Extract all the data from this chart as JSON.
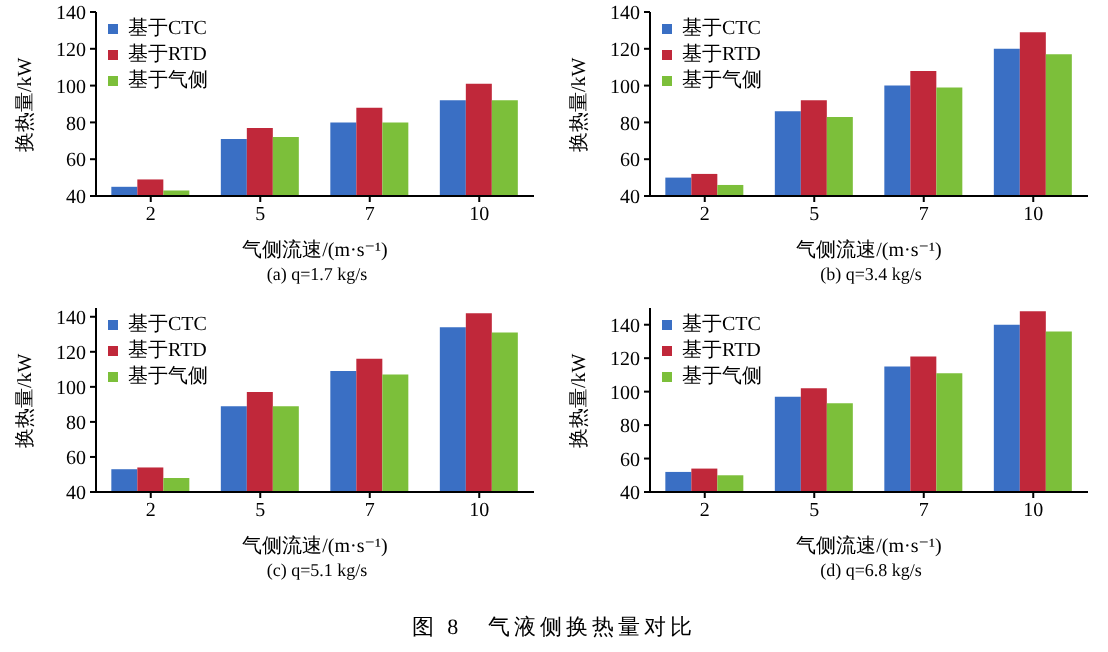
{
  "chart_data": [
    {
      "type": "bar",
      "subtitle": "(a) q=1.7 kg/s",
      "xlabel": "气侧流速/(m·s⁻¹)",
      "ylabel": "换热量/kW",
      "categories": [
        "2",
        "5",
        "7",
        "10"
      ],
      "series": [
        {
          "name": "基于CTC",
          "color": "#3a6fc4",
          "values": [
            45,
            71,
            80,
            92
          ]
        },
        {
          "name": "基于RTD",
          "color": "#c0283a",
          "values": [
            49,
            77,
            88,
            101
          ]
        },
        {
          "name": "基于气侧",
          "color": "#7cbf3a",
          "values": [
            43,
            72,
            80,
            92
          ]
        }
      ],
      "ylim": [
        40,
        140
      ],
      "yticks": [
        40,
        60,
        80,
        100,
        120,
        140
      ],
      "legend": "top left",
      "grid": false
    },
    {
      "type": "bar",
      "subtitle": "(b) q=3.4 kg/s",
      "xlabel": "气侧流速/(m·s⁻¹)",
      "ylabel": "换热量/kW",
      "categories": [
        "2",
        "5",
        "7",
        "10"
      ],
      "series": [
        {
          "name": "基于CTC",
          "color": "#3a6fc4",
          "values": [
            50,
            86,
            100,
            120
          ]
        },
        {
          "name": "基于RTD",
          "color": "#c0283a",
          "values": [
            52,
            92,
            108,
            129
          ]
        },
        {
          "name": "基于气侧",
          "color": "#7cbf3a",
          "values": [
            46,
            83,
            99,
            117
          ]
        }
      ],
      "ylim": [
        40,
        140
      ],
      "yticks": [
        40,
        60,
        80,
        100,
        120,
        140
      ],
      "legend": "top left",
      "grid": false
    },
    {
      "type": "bar",
      "subtitle": "(c) q=5.1 kg/s",
      "xlabel": "气侧流速/(m·s⁻¹)",
      "ylabel": "换热量/kW",
      "categories": [
        "2",
        "5",
        "7",
        "10"
      ],
      "series": [
        {
          "name": "基于CTC",
          "color": "#3a6fc4",
          "values": [
            53,
            89,
            109,
            134
          ]
        },
        {
          "name": "基于RTD",
          "color": "#c0283a",
          "values": [
            54,
            97,
            116,
            142
          ]
        },
        {
          "name": "基于气侧",
          "color": "#7cbf3a",
          "values": [
            48,
            89,
            107,
            131
          ]
        }
      ],
      "ylim": [
        40,
        145
      ],
      "yticks": [
        40,
        60,
        80,
        100,
        120,
        140
      ],
      "legend": "top left",
      "grid": false
    },
    {
      "type": "bar",
      "subtitle": "(d) q=6.8 kg/s",
      "xlabel": "气侧流速/(m·s⁻¹)",
      "ylabel": "换热量/kW",
      "categories": [
        "2",
        "5",
        "7",
        "10"
      ],
      "series": [
        {
          "name": "基于CTC",
          "color": "#3a6fc4",
          "values": [
            52,
            97,
            115,
            140
          ]
        },
        {
          "name": "基于RTD",
          "color": "#c0283a",
          "values": [
            54,
            102,
            121,
            148
          ]
        },
        {
          "name": "基于气侧",
          "color": "#7cbf3a",
          "values": [
            50,
            93,
            111,
            136
          ]
        }
      ],
      "ylim": [
        40,
        150
      ],
      "yticks": [
        40,
        60,
        80,
        100,
        120,
        140
      ],
      "legend": "top left",
      "grid": false,
      "annotations": [
        "图 8　气液侧换热量对比"
      ]
    }
  ]
}
